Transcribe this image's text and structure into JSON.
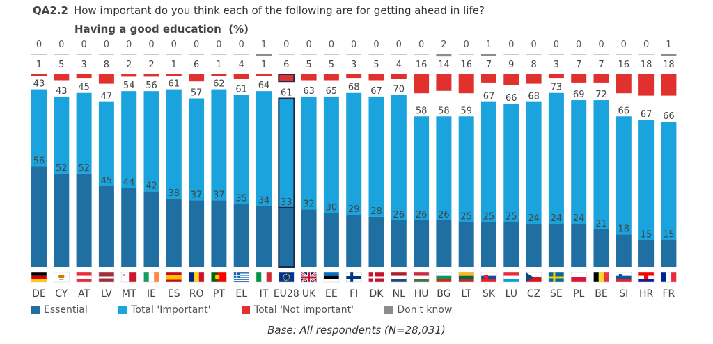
{
  "header": {
    "code": "QA2.2",
    "question": "How important do you think each of the following are for getting ahead in life?",
    "subtitle": "Having a good education",
    "subtitle_unit": "(%)"
  },
  "footnote": "Base: All respondents (N=28,031)",
  "colors": {
    "essential": "#1f6fa3",
    "important": "#1aa3dc",
    "not_important": "#e0312e",
    "dont_know": "#8c8c8c",
    "highlight_border": "#1a2b4f"
  },
  "chart_data": {
    "type": "bar",
    "stacked": true,
    "categories": [
      "DE",
      "CY",
      "AT",
      "LV",
      "MT",
      "IE",
      "ES",
      "RO",
      "PT",
      "EL",
      "IT",
      "EU28",
      "UK",
      "EE",
      "FI",
      "DK",
      "NL",
      "HU",
      "BG",
      "LT",
      "SK",
      "LU",
      "CZ",
      "SE",
      "PL",
      "BE",
      "SI",
      "HR",
      "FR"
    ],
    "highlight_category": "EU28",
    "series": [
      {
        "name": "Essential",
        "key": "essential",
        "values": [
          56,
          52,
          52,
          45,
          44,
          42,
          38,
          37,
          37,
          35,
          34,
          33,
          32,
          30,
          29,
          28,
          26,
          26,
          26,
          25,
          25,
          25,
          24,
          24,
          24,
          21,
          18,
          15,
          15
        ]
      },
      {
        "name": "Total 'Important'",
        "key": "important",
        "values": [
          43,
          43,
          45,
          47,
          54,
          56,
          61,
          57,
          62,
          61,
          64,
          61,
          63,
          65,
          68,
          67,
          70,
          58,
          58,
          59,
          67,
          66,
          68,
          73,
          69,
          72,
          66,
          67,
          66
        ]
      },
      {
        "name": "Total 'Not important'",
        "key": "not_important",
        "values": [
          1,
          5,
          3,
          8,
          2,
          2,
          1,
          6,
          1,
          4,
          1,
          6,
          5,
          5,
          3,
          5,
          4,
          16,
          14,
          16,
          7,
          9,
          8,
          3,
          7,
          7,
          16,
          18,
          18
        ]
      },
      {
        "name": "Don't know",
        "key": "dont_know",
        "values": [
          0,
          0,
          0,
          0,
          0,
          0,
          0,
          0,
          0,
          0,
          1,
          0,
          0,
          0,
          0,
          0,
          0,
          0,
          2,
          0,
          1,
          0,
          0,
          0,
          0,
          0,
          0,
          0,
          1
        ]
      }
    ],
    "ylim": [
      0,
      100
    ],
    "grid": false,
    "legend": "bottom-left",
    "flags": [
      "flag-de-icon",
      "flag-cy-icon",
      "flag-at-icon",
      "flag-lv-icon",
      "flag-mt-icon",
      "flag-ie-icon",
      "flag-es-icon",
      "flag-ro-icon",
      "flag-pt-icon",
      "flag-el-icon",
      "flag-it-icon",
      "flag-eu-icon",
      "flag-uk-icon",
      "flag-ee-icon",
      "flag-fi-icon",
      "flag-dk-icon",
      "flag-nl-icon",
      "flag-hu-icon",
      "flag-bg-icon",
      "flag-lt-icon",
      "flag-sk-icon",
      "flag-lu-icon",
      "flag-cz-icon",
      "flag-se-icon",
      "flag-pl-icon",
      "flag-be-icon",
      "flag-si-icon",
      "flag-hr-icon",
      "flag-fr-icon"
    ]
  }
}
